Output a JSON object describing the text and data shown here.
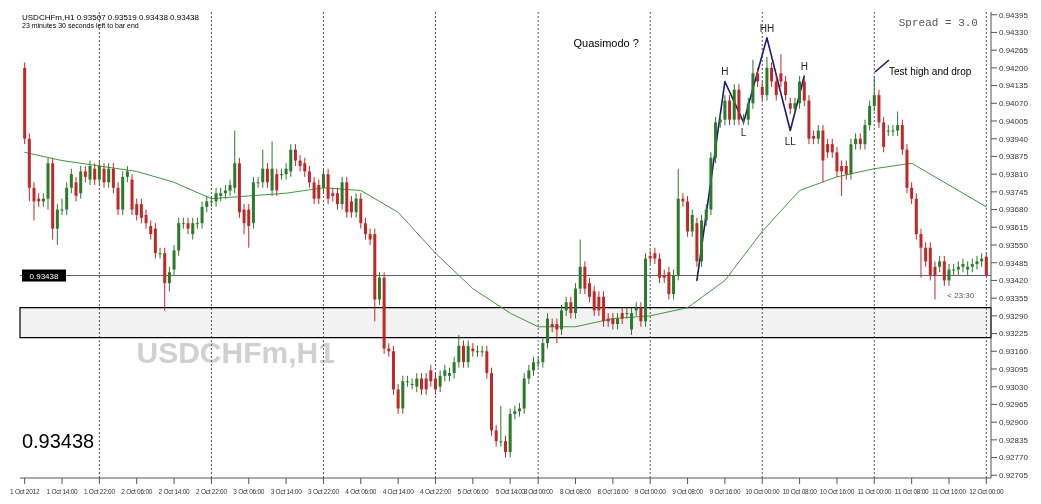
{
  "chart_data": {
    "type": "candlestick",
    "title": "USDCHFm,H1  0.93507 0.93519 0.93438 0.93438",
    "subtitle": "23 minutes 30 seconds left to bar end",
    "categories": [
      "1 Oct 2012",
      null,
      null,
      null,
      null,
      null,
      null,
      null,
      "1 Oct 14:00",
      null,
      null,
      null,
      null,
      null,
      null,
      null,
      "1 Oct 22:00",
      null,
      null,
      null,
      null,
      null,
      null,
      null,
      "2 Oct 06:00",
      null,
      null,
      null,
      null,
      null,
      null,
      null,
      "2 Oct 14:00",
      null,
      null,
      null,
      null,
      null,
      null,
      null,
      "2 Oct 22:00",
      null,
      null,
      null,
      null,
      null,
      null,
      null,
      "3 Oct 06:00",
      null,
      null,
      null,
      null,
      null,
      null,
      null,
      "3 Oct 14:00",
      null,
      null,
      null,
      null,
      null,
      null,
      null,
      "3 Oct 22:00",
      null,
      null,
      null,
      null,
      null,
      null,
      null,
      "4 Oct 06:00",
      null,
      null,
      null,
      null,
      null,
      null,
      null,
      "4 Oct 14:00",
      null,
      null,
      null,
      null,
      null,
      null,
      null,
      "4 Oct 22:00",
      null,
      null,
      null,
      null,
      null,
      null,
      null,
      "5 Oct 06:00",
      null,
      null,
      null,
      null,
      null,
      null,
      null,
      "5 Oct 14:00",
      null,
      null,
      null,
      null,
      null,
      "8 Oct 00:00",
      null,
      null,
      null,
      null,
      null,
      null,
      null,
      "8 Oct 08:00",
      null,
      null,
      null,
      null,
      null,
      null,
      null,
      "8 Oct 16:00",
      null,
      null,
      null,
      null,
      null,
      null,
      null,
      "9 Oct 00:00",
      null,
      null,
      null,
      null,
      null,
      null,
      null,
      "9 Oct 08:00",
      null,
      null,
      null,
      null,
      null,
      null,
      null,
      "9 Oct 16:00",
      null,
      null,
      null,
      null,
      null,
      null,
      null,
      "10 Oct 00:00",
      null,
      null,
      null,
      null,
      null,
      null,
      null,
      "10 Oct 08:00",
      null,
      null,
      null,
      null,
      null,
      null,
      null,
      "10 Oct 16:00",
      null,
      null,
      null,
      null,
      null,
      null,
      null,
      "11 Oct 00:00",
      null,
      null,
      null,
      null,
      null,
      null,
      null,
      "11 Oct 08:00",
      null,
      null,
      null,
      null,
      null,
      null,
      null,
      "11 Oct 16:00",
      null,
      null,
      null,
      null,
      null,
      null,
      null,
      "12 Oct 00:00"
    ],
    "ohlc": [
      [
        0.942,
        0.9422,
        0.9392,
        0.9394
      ],
      [
        0.9394,
        0.9396,
        0.9371,
        0.9376
      ],
      [
        0.9376,
        0.9378,
        0.9364,
        0.9371
      ],
      [
        0.9372,
        0.9374,
        0.9369,
        0.9371
      ],
      [
        0.9371,
        0.9374,
        0.9369,
        0.9372
      ],
      [
        0.9372,
        0.9387,
        0.9368,
        0.9385
      ],
      [
        0.9385,
        0.9387,
        0.9357,
        0.9361
      ],
      [
        0.9361,
        0.937,
        0.9355,
        0.9368
      ],
      [
        0.9368,
        0.9372,
        0.9366,
        0.9368
      ],
      [
        0.9368,
        0.9378,
        0.9366,
        0.9376
      ],
      [
        0.9376,
        0.9383,
        0.9374,
        0.9381
      ],
      [
        0.9378,
        0.938,
        0.9371,
        0.9373
      ],
      [
        0.9374,
        0.9384,
        0.9372,
        0.9382
      ],
      [
        0.9382,
        0.9384,
        0.9378,
        0.938
      ],
      [
        0.9379,
        0.9386,
        0.9377,
        0.9384
      ],
      [
        0.9383,
        0.9385,
        0.9377,
        0.9379
      ],
      [
        0.9379,
        0.9386,
        0.9377,
        0.9384
      ],
      [
        0.9383,
        0.9385,
        0.9376,
        0.9378
      ],
      [
        0.9378,
        0.9385,
        0.9376,
        0.9383
      ],
      [
        0.9383,
        0.9385,
        0.9374,
        0.9376
      ],
      [
        0.9376,
        0.9378,
        0.9366,
        0.9368
      ],
      [
        0.9368,
        0.9382,
        0.9366,
        0.938
      ],
      [
        0.938,
        0.9384,
        0.9378,
        0.9382
      ],
      [
        0.9379,
        0.9381,
        0.9366,
        0.9368
      ],
      [
        0.937,
        0.9372,
        0.9364,
        0.9366
      ],
      [
        0.937,
        0.9372,
        0.9363,
        0.9365
      ],
      [
        0.9366,
        0.9368,
        0.9361,
        0.9363
      ],
      [
        0.9362,
        0.9364,
        0.9357,
        0.9359
      ],
      [
        0.9361,
        0.9363,
        0.935,
        0.9352
      ],
      [
        0.9352,
        0.9354,
        0.935,
        0.9352
      ],
      [
        0.9352,
        0.9354,
        0.9331,
        0.9341
      ],
      [
        0.9341,
        0.9347,
        0.9338,
        0.9345
      ],
      [
        0.9346,
        0.9355,
        0.9344,
        0.9353
      ],
      [
        0.9353,
        0.9365,
        0.9351,
        0.9363
      ],
      [
        0.9363,
        0.9365,
        0.9361,
        0.9363
      ],
      [
        0.9363,
        0.9365,
        0.9359,
        0.9361
      ],
      [
        0.9359,
        0.9365,
        0.9357,
        0.9363
      ],
      [
        0.9363,
        0.9365,
        0.9361,
        0.9363
      ],
      [
        0.9363,
        0.9371,
        0.9361,
        0.9369
      ],
      [
        0.9369,
        0.9373,
        0.9367,
        0.9371
      ],
      [
        0.9371,
        0.9373,
        0.9369,
        0.9371
      ],
      [
        0.9371,
        0.9376,
        0.9369,
        0.9374
      ],
      [
        0.9373,
        0.9376,
        0.9371,
        0.9374
      ],
      [
        0.9374,
        0.9377,
        0.9372,
        0.9375
      ],
      [
        0.9375,
        0.9379,
        0.9373,
        0.9377
      ],
      [
        0.9376,
        0.9397,
        0.9374,
        0.9385
      ],
      [
        0.9385,
        0.9387,
        0.9365,
        0.9367
      ],
      [
        0.9368,
        0.937,
        0.9359,
        0.9363
      ],
      [
        0.9368,
        0.937,
        0.9354,
        0.9362
      ],
      [
        0.9363,
        0.938,
        0.9361,
        0.9378
      ],
      [
        0.9378,
        0.938,
        0.9376,
        0.9378
      ],
      [
        0.9378,
        0.939,
        0.9376,
        0.9383
      ],
      [
        0.9383,
        0.9385,
        0.9376,
        0.9378
      ],
      [
        0.9375,
        0.9393,
        0.9373,
        0.9383
      ],
      [
        0.9381,
        0.9383,
        0.9373,
        0.9375
      ],
      [
        0.9381,
        0.9383,
        0.9379,
        0.9381
      ],
      [
        0.9381,
        0.9385,
        0.9379,
        0.9383
      ],
      [
        0.9382,
        0.9392,
        0.938,
        0.939
      ],
      [
        0.939,
        0.9392,
        0.9384,
        0.9386
      ],
      [
        0.9386,
        0.9388,
        0.9382,
        0.9384
      ],
      [
        0.9385,
        0.9387,
        0.938,
        0.9382
      ],
      [
        0.9382,
        0.9384,
        0.9376,
        0.9378
      ],
      [
        0.9378,
        0.938,
        0.937,
        0.9372
      ],
      [
        0.9377,
        0.9379,
        0.937,
        0.9372
      ],
      [
        0.9376,
        0.9383,
        0.9374,
        0.9381
      ],
      [
        0.9381,
        0.9383,
        0.937,
        0.9372
      ],
      [
        0.9374,
        0.9376,
        0.9371,
        0.9373
      ],
      [
        0.9374,
        0.9376,
        0.9368,
        0.937
      ],
      [
        0.937,
        0.938,
        0.9368,
        0.9378
      ],
      [
        0.9378,
        0.938,
        0.9365,
        0.9367
      ],
      [
        0.9371,
        0.9373,
        0.9365,
        0.9367
      ],
      [
        0.9367,
        0.9374,
        0.9365,
        0.9372
      ],
      [
        0.9372,
        0.9374,
        0.9361,
        0.9363
      ],
      [
        0.9363,
        0.9365,
        0.9357,
        0.9359
      ],
      [
        0.9359,
        0.9361,
        0.9355,
        0.9357
      ],
      [
        0.9359,
        0.9361,
        0.9327,
        0.9335
      ],
      [
        0.9335,
        0.9345,
        0.9333,
        0.9343
      ],
      [
        0.9343,
        0.9345,
        0.9315,
        0.9317
      ],
      [
        0.9317,
        0.9319,
        0.9314,
        0.9316
      ],
      [
        0.9316,
        0.9318,
        0.93,
        0.9302
      ],
      [
        0.9302,
        0.9304,
        0.9293,
        0.9295
      ],
      [
        0.9295,
        0.9307,
        0.9293,
        0.9305
      ],
      [
        0.9305,
        0.9307,
        0.9303,
        0.9305
      ],
      [
        0.9304,
        0.9306,
        0.9302,
        0.9304
      ],
      [
        0.9303,
        0.9308,
        0.9301,
        0.9306
      ],
      [
        0.9306,
        0.9308,
        0.93,
        0.9302
      ],
      [
        0.9306,
        0.9308,
        0.93,
        0.9302
      ],
      [
        0.9309,
        0.9311,
        0.9303,
        0.9305
      ],
      [
        0.9306,
        0.9308,
        0.93,
        0.9302
      ],
      [
        0.9303,
        0.9309,
        0.9301,
        0.9307
      ],
      [
        0.9307,
        0.9311,
        0.9305,
        0.9309
      ],
      [
        0.9307,
        0.931,
        0.9305,
        0.9308
      ],
      [
        0.9308,
        0.9314,
        0.9306,
        0.9312
      ],
      [
        0.9312,
        0.9322,
        0.931,
        0.9318
      ],
      [
        0.9318,
        0.932,
        0.931,
        0.9312
      ],
      [
        0.9312,
        0.932,
        0.931,
        0.9318
      ],
      [
        0.9317,
        0.9319,
        0.9314,
        0.9316
      ],
      [
        0.9316,
        0.9318,
        0.9314,
        0.9316
      ],
      [
        0.9316,
        0.9318,
        0.9314,
        0.9316
      ],
      [
        0.9316,
        0.9318,
        0.9306,
        0.9308
      ],
      [
        0.9308,
        0.931,
        0.9285,
        0.9287
      ],
      [
        0.9287,
        0.9289,
        0.9281,
        0.9283
      ],
      [
        0.9283,
        0.9296,
        0.9281,
        0.9283
      ],
      [
        0.9283,
        0.9285,
        0.9277,
        0.9279
      ],
      [
        0.9279,
        0.9295,
        0.9277,
        0.9293
      ],
      [
        0.9293,
        0.9296,
        0.9291,
        0.9294
      ],
      [
        0.9294,
        0.9297,
        0.9292,
        0.9295
      ],
      [
        0.9295,
        0.9308,
        0.9293,
        0.9306
      ],
      [
        0.9306,
        0.9311,
        0.9304,
        0.9309
      ],
      [
        0.9309,
        0.9314,
        0.9307,
        0.9312
      ],
      [
        0.9312,
        0.9314,
        0.931,
        0.9312
      ],
      [
        0.9312,
        0.9321,
        0.931,
        0.9319
      ],
      [
        0.9319,
        0.933,
        0.9317,
        0.9328
      ],
      [
        0.9326,
        0.9328,
        0.9323,
        0.9325
      ],
      [
        0.9326,
        0.9328,
        0.9319,
        0.9324
      ],
      [
        0.9324,
        0.9333,
        0.9322,
        0.9331
      ],
      [
        0.9331,
        0.9336,
        0.9329,
        0.9334
      ],
      [
        0.9334,
        0.9336,
        0.9328,
        0.933
      ],
      [
        0.933,
        0.9341,
        0.9328,
        0.9339
      ],
      [
        0.9339,
        0.9357,
        0.9337,
        0.9347
      ],
      [
        0.9347,
        0.9349,
        0.9337,
        0.9339
      ],
      [
        0.9341,
        0.9343,
        0.9334,
        0.9336
      ],
      [
        0.9338,
        0.934,
        0.9329,
        0.9331
      ],
      [
        0.9336,
        0.9338,
        0.9329,
        0.9331
      ],
      [
        0.9336,
        0.9338,
        0.9325,
        0.9327
      ],
      [
        0.9328,
        0.933,
        0.9325,
        0.9327
      ],
      [
        0.9328,
        0.933,
        0.9324,
        0.9326
      ],
      [
        0.9326,
        0.933,
        0.9324,
        0.9328
      ],
      [
        0.933,
        0.9332,
        0.9326,
        0.9328
      ],
      [
        0.933,
        0.9332,
        0.9328,
        0.933
      ],
      [
        0.9324,
        0.9332,
        0.9322,
        0.933
      ],
      [
        0.9331,
        0.9334,
        0.9329,
        0.9332
      ],
      [
        0.9332,
        0.9334,
        0.9325,
        0.9327
      ],
      [
        0.9327,
        0.9352,
        0.9325,
        0.935
      ],
      [
        0.9351,
        0.9353,
        0.9348,
        0.935
      ],
      [
        0.9352,
        0.9354,
        0.9348,
        0.935
      ],
      [
        0.935,
        0.9352,
        0.9341,
        0.9343
      ],
      [
        0.9344,
        0.9346,
        0.9341,
        0.9343
      ],
      [
        0.9345,
        0.9347,
        0.9335,
        0.9337
      ],
      [
        0.9337,
        0.9346,
        0.9335,
        0.9344
      ],
      [
        0.9344,
        0.9383,
        0.9342,
        0.9372
      ],
      [
        0.9372,
        0.9374,
        0.9369,
        0.9371
      ],
      [
        0.9371,
        0.9373,
        0.9358,
        0.936
      ],
      [
        0.936,
        0.9368,
        0.9358,
        0.9366
      ],
      [
        0.9363,
        0.9365,
        0.9347,
        0.9349
      ],
      [
        0.9349,
        0.9366,
        0.9347,
        0.9364
      ],
      [
        0.9364,
        0.937,
        0.9362,
        0.9368
      ],
      [
        0.9368,
        0.9389,
        0.9366,
        0.9387
      ],
      [
        0.9387,
        0.9402,
        0.9385,
        0.94
      ],
      [
        0.94,
        0.9403,
        0.9398,
        0.9401
      ],
      [
        0.9401,
        0.941,
        0.9399,
        0.9408
      ],
      [
        0.9408,
        0.941,
        0.9399,
        0.9401
      ],
      [
        0.9401,
        0.9414,
        0.9399,
        0.9412
      ],
      [
        0.9412,
        0.9414,
        0.9399,
        0.9401
      ],
      [
        0.9401,
        0.9403,
        0.9399,
        0.9401
      ],
      [
        0.9401,
        0.9409,
        0.9399,
        0.9407
      ],
      [
        0.9407,
        0.9423,
        0.9405,
        0.9418
      ],
      [
        0.9418,
        0.942,
        0.9413,
        0.9415
      ],
      [
        0.9413,
        0.9415,
        0.9408,
        0.941
      ],
      [
        0.941,
        0.9424,
        0.9408,
        0.942
      ],
      [
        0.942,
        0.9422,
        0.9413,
        0.9415
      ],
      [
        0.9415,
        0.9417,
        0.9408,
        0.941
      ],
      [
        0.9418,
        0.9425,
        0.9413,
        0.9415
      ],
      [
        0.9415,
        0.9417,
        0.9408,
        0.941
      ],
      [
        0.9407,
        0.9409,
        0.9403,
        0.9405
      ],
      [
        0.9405,
        0.9409,
        0.9403,
        0.9407
      ],
      [
        0.9407,
        0.9417,
        0.9405,
        0.9415
      ],
      [
        0.9415,
        0.9417,
        0.9406,
        0.9408
      ],
      [
        0.9408,
        0.941,
        0.9392,
        0.9394
      ],
      [
        0.9395,
        0.9397,
        0.9392,
        0.9394
      ],
      [
        0.9394,
        0.9399,
        0.9392,
        0.9397
      ],
      [
        0.9397,
        0.9399,
        0.9378,
        0.9386
      ],
      [
        0.9392,
        0.9394,
        0.9387,
        0.9389
      ],
      [
        0.9392,
        0.9394,
        0.9387,
        0.9389
      ],
      [
        0.9389,
        0.9391,
        0.938,
        0.9382
      ],
      [
        0.9384,
        0.9386,
        0.9373,
        0.9382
      ],
      [
        0.9384,
        0.9386,
        0.9379,
        0.9381
      ],
      [
        0.9381,
        0.9394,
        0.9379,
        0.9392
      ],
      [
        0.9392,
        0.9396,
        0.939,
        0.9394
      ],
      [
        0.9394,
        0.9396,
        0.939,
        0.9392
      ],
      [
        0.9392,
        0.9401,
        0.939,
        0.9399
      ],
      [
        0.9399,
        0.9408,
        0.9397,
        0.9406
      ],
      [
        0.9406,
        0.9417,
        0.9404,
        0.941
      ],
      [
        0.941,
        0.9412,
        0.9398,
        0.94
      ],
      [
        0.94,
        0.9402,
        0.9389,
        0.9391
      ],
      [
        0.9397,
        0.9399,
        0.9395,
        0.9397
      ],
      [
        0.9397,
        0.9399,
        0.9395,
        0.9397
      ],
      [
        0.9397,
        0.9404,
        0.9395,
        0.9399
      ],
      [
        0.9399,
        0.9401,
        0.9388,
        0.939
      ],
      [
        0.939,
        0.9392,
        0.9374,
        0.9376
      ],
      [
        0.9376,
        0.9378,
        0.937,
        0.9372
      ],
      [
        0.9372,
        0.9374,
        0.9357,
        0.9359
      ],
      [
        0.9359,
        0.9361,
        0.9343,
        0.9354
      ],
      [
        0.9354,
        0.9356,
        0.9347,
        0.9349
      ],
      [
        0.9354,
        0.9356,
        0.9342,
        0.9344
      ],
      [
        0.9347,
        0.9349,
        0.9335,
        0.9344
      ],
      [
        0.9347,
        0.9351,
        0.9345,
        0.9349
      ],
      [
        0.9349,
        0.9351,
        0.934,
        0.9342
      ],
      [
        0.9342,
        0.9348,
        0.934,
        0.9346
      ],
      [
        0.9346,
        0.9348,
        0.9344,
        0.9346
      ],
      [
        0.9346,
        0.9349,
        0.9344,
        0.9347
      ],
      [
        0.9347,
        0.935,
        0.9345,
        0.9348
      ],
      [
        0.9346,
        0.9349,
        0.9344,
        0.9347
      ],
      [
        0.9347,
        0.935,
        0.9345,
        0.9348
      ],
      [
        0.9348,
        0.9351,
        0.9346,
        0.9349
      ],
      [
        0.9349,
        0.9352,
        0.9347,
        0.935
      ],
      [
        0.93507,
        0.93519,
        0.93438,
        0.93438
      ]
    ],
    "colors": [
      "#c02828",
      "#c02828",
      "#c02828",
      "#c02828",
      "#2a7a2a",
      "#2a7a2a",
      "#c02828",
      "#2a7a2a",
      "#2a7a2a",
      "#2a7a2a",
      "#2a7a2a",
      "#c02828",
      "#2a7a2a",
      "#c02828",
      "#2a7a2a",
      "#c02828",
      "#2a7a2a",
      "#c02828",
      "#2a7a2a",
      "#c02828",
      "#c02828",
      "#2a7a2a",
      "#2a7a2a",
      "#c02828",
      "#c02828",
      "#c02828",
      "#c02828",
      "#c02828",
      "#c02828",
      "#2a7a2a",
      "#c02828",
      "#2a7a2a",
      "#2a7a2a",
      "#2a7a2a",
      "#2a7a2a",
      "#c02828",
      "#2a7a2a",
      "#2a7a2a",
      "#2a7a2a",
      "#2a7a2a",
      "#2a7a2a",
      "#2a7a2a",
      "#2a7a2a",
      "#2a7a2a",
      "#2a7a2a",
      "#2a7a2a",
      "#c02828",
      "#c02828",
      "#c02828",
      "#2a7a2a",
      "#2a7a2a",
      "#2a7a2a",
      "#c02828",
      "#2a7a2a",
      "#c02828",
      "#2a7a2a",
      "#2a7a2a",
      "#2a7a2a",
      "#c02828",
      "#c02828",
      "#c02828",
      "#c02828",
      "#c02828",
      "#c02828",
      "#2a7a2a",
      "#c02828",
      "#c02828",
      "#c02828",
      "#2a7a2a",
      "#c02828",
      "#c02828",
      "#2a7a2a",
      "#c02828",
      "#c02828",
      "#c02828",
      "#c02828",
      "#2a7a2a",
      "#c02828",
      "#c02828",
      "#c02828",
      "#c02828",
      "#2a7a2a",
      "#2a7a2a",
      "#2a7a2a",
      "#2a7a2a",
      "#c02828",
      "#c02828",
      "#c02828",
      "#c02828",
      "#2a7a2a",
      "#2a7a2a",
      "#2a7a2a",
      "#2a7a2a",
      "#2a7a2a",
      "#c02828",
      "#2a7a2a",
      "#c02828",
      "#2a7a2a",
      "#2a7a2a",
      "#c02828",
      "#c02828",
      "#c02828",
      "#2a7a2a",
      "#c02828",
      "#2a7a2a",
      "#2a7a2a",
      "#2a7a2a",
      "#2a7a2a",
      "#2a7a2a",
      "#2a7a2a",
      "#2a7a2a",
      "#2a7a2a",
      "#2a7a2a",
      "#c02828",
      "#c02828",
      "#2a7a2a",
      "#2a7a2a",
      "#c02828",
      "#2a7a2a",
      "#2a7a2a",
      "#c02828",
      "#c02828",
      "#c02828",
      "#c02828",
      "#c02828",
      "#c02828",
      "#c02828",
      "#2a7a2a",
      "#c02828",
      "#2a7a2a",
      "#2a7a2a",
      "#2a7a2a",
      "#c02828",
      "#2a7a2a",
      "#c02828",
      "#c02828",
      "#c02828",
      "#c02828",
      "#c02828",
      "#2a7a2a",
      "#2a7a2a",
      "#c02828",
      "#c02828",
      "#2a7a2a",
      "#c02828",
      "#2a7a2a",
      "#2a7a2a",
      "#2a7a2a",
      "#2a7a2a",
      "#2a7a2a",
      "#2a7a2a",
      "#c02828",
      "#2a7a2a",
      "#c02828",
      "#2a7a2a",
      "#2a7a2a",
      "#2a7a2a",
      "#c02828",
      "#c02828",
      "#2a7a2a",
      "#c02828",
      "#c02828",
      "#c02828",
      "#c02828",
      "#c02828",
      "#2a7a2a",
      "#2a7a2a",
      "#c02828",
      "#c02828",
      "#c02828",
      "#2a7a2a",
      "#c02828",
      "#c02828",
      "#c02828",
      "#c02828",
      "#c02828",
      "#c02828",
      "#2a7a2a",
      "#2a7a2a",
      "#c02828",
      "#2a7a2a",
      "#2a7a2a",
      "#2a7a2a",
      "#c02828",
      "#c02828",
      "#2a7a2a",
      "#2a7a2a",
      "#2a7a2a",
      "#c02828",
      "#c02828",
      "#c02828",
      "#c02828",
      "#c02828",
      "#c02828",
      "#c02828",
      "#c02828",
      "#2a7a2a",
      "#c02828",
      "#2a7a2a",
      "#2a7a2a",
      "#2a7a2a",
      "#2a7a2a",
      "#2a7a2a",
      "#2a7a2a",
      "#2a7a2a",
      "#2a7a2a",
      "#c02828"
    ],
    "series": [
      {
        "type": "line",
        "color": "#3c9a3c",
        "x": [
          "1 Oct 2012",
          "1 Oct 14:00",
          "1 Oct 22:00",
          "2 Oct 06:00",
          "2 Oct 14:00",
          "2 Oct 22:00",
          "3 Oct 06:00",
          "3 Oct 14:00",
          "3 Oct 22:00",
          "4 Oct 06:00",
          "4 Oct 14:00",
          "4 Oct 22:00",
          "5 Oct 06:00",
          "5 Oct 14:00",
          "8 Oct 00:00",
          "8 Oct 08:00",
          "8 Oct 16:00",
          "9 Oct 00:00",
          "9 Oct 08:00",
          "9 Oct 16:00",
          "10 Oct 00:00",
          "10 Oct 08:00",
          "10 Oct 16:00",
          "11 Oct 00:00",
          "11 Oct 08:00",
          "11 Oct 16:00",
          "12 Oct 00:00"
        ],
        "values": [
          0.9389,
          0.9386,
          0.9384,
          0.9382,
          0.9378,
          0.9372,
          0.9373,
          0.9374,
          0.9376,
          0.9375,
          0.9367,
          0.9352,
          0.9339,
          0.933,
          0.9325,
          0.9325,
          0.9328,
          0.9329,
          0.9332,
          0.9342,
          0.936,
          0.9375,
          0.938,
          0.9383,
          0.9385,
          0.9377,
          0.9369
        ]
      },
      {
        "type": "line",
        "color": "#1a1a6e",
        "values": [
          null,
          null,
          null,
          null,
          null,
          null,
          null,
          null,
          null,
          null,
          null,
          null,
          null,
          null,
          null,
          null,
          null,
          null,
          null,
          null,
          null,
          null,
          null,
          null,
          null,
          null,
          null,
          null,
          null,
          null,
          null,
          null,
          null,
          null,
          null,
          null,
          null,
          null,
          null,
          null,
          null,
          null,
          null,
          null,
          null,
          null,
          null,
          null,
          null,
          null,
          null,
          null,
          null,
          null,
          null,
          null,
          null,
          null,
          null,
          null,
          null,
          null,
          null,
          null,
          null,
          null,
          null,
          null,
          null,
          null,
          null,
          null,
          null,
          null,
          null,
          null,
          null,
          null,
          null,
          null,
          null,
          null,
          null,
          null,
          null,
          null,
          null,
          null,
          null,
          null,
          null,
          null,
          null,
          null,
          null,
          null,
          null,
          null,
          null,
          null,
          null,
          null,
          null,
          null,
          null,
          null,
          null,
          null,
          null,
          null,
          null,
          null,
          null,
          null,
          null,
          null,
          null,
          null,
          null,
          null,
          null,
          null,
          null,
          null,
          null,
          null,
          null,
          null,
          null,
          null,
          null,
          null,
          null,
          null,
          null,
          null,
          null,
          null,
          null,
          null,
          null,
          null,
          null,
          null,
          0.9342,
          null,
          null,
          null,
          null,
          null,
          0.9415,
          null,
          null,
          null,
          0.94,
          null,
          null,
          null,
          null,
          0.9431,
          null,
          null,
          null,
          null,
          0.9397,
          null,
          null,
          0.9417,
          null,
          null,
          null,
          null,
          null,
          null,
          null,
          null,
          null,
          null,
          null,
          null,
          null,
          null,
          null,
          null,
          null,
          null,
          null,
          null,
          null,
          null,
          null,
          null,
          null,
          null,
          null,
          null,
          null,
          null,
          null,
          null,
          null,
          null,
          null,
          null,
          null,
          null,
          null
        ],
        "value_labels": [
          null,
          null,
          null,
          null,
          null,
          null,
          null,
          null,
          null,
          null,
          null,
          null,
          null,
          null,
          null,
          null,
          null,
          null,
          null,
          null,
          null,
          null,
          null,
          null,
          null,
          null,
          null,
          null,
          null,
          null,
          null,
          null,
          null,
          null,
          null,
          null,
          null,
          null,
          null,
          null,
          null,
          null,
          null,
          null,
          null,
          null,
          null,
          null,
          null,
          null,
          null,
          null,
          null,
          null,
          null,
          null,
          null,
          null,
          null,
          null,
          null,
          null,
          null,
          null,
          null,
          null,
          null,
          null,
          null,
          null,
          null,
          null,
          null,
          null,
          null,
          null,
          null,
          null,
          null,
          null,
          null,
          null,
          null,
          null,
          null,
          null,
          null,
          null,
          null,
          null,
          null,
          null,
          null,
          null,
          null,
          null,
          null,
          null,
          null,
          null,
          null,
          null,
          null,
          null,
          null,
          null,
          null,
          null,
          null,
          null,
          null,
          null,
          null,
          null,
          null,
          null,
          null,
          null,
          null,
          null,
          null,
          null,
          null,
          null,
          null,
          null,
          null,
          null,
          null,
          null,
          null,
          null,
          null,
          null,
          null,
          null,
          null,
          null,
          null,
          null,
          null,
          null,
          null,
          null,
          null,
          null,
          null,
          null,
          null,
          null,
          "H",
          null,
          null,
          null,
          "L",
          null,
          null,
          null,
          null,
          "HH",
          null,
          null,
          null,
          null,
          "LL",
          null,
          null,
          "H",
          null,
          null,
          null,
          null,
          null,
          null,
          null,
          null,
          null,
          null,
          null,
          null,
          null,
          null,
          null,
          null,
          null,
          null,
          null,
          null,
          null,
          null,
          null,
          null,
          null,
          null,
          null,
          null,
          null,
          null,
          null,
          null,
          null,
          null,
          null,
          null,
          null,
          null,
          null
        ]
      }
    ],
    "ylim": [
      0.92695,
      0.94405
    ],
    "yticks": [
      0.92705,
      {
        "value": 0.9277,
        "label": "0.92770"
      },
      0.92835,
      {
        "value": 0.929,
        "label": "0.92900"
      },
      0.92965,
      {
        "value": 0.9303,
        "label": "0.93030"
      },
      0.93095,
      {
        "value": 0.9316,
        "label": "0.93160"
      },
      0.93225,
      {
        "value": 0.9329,
        "label": "0.93290"
      },
      0.93355,
      {
        "value": 0.9342,
        "label": "0.93420"
      },
      0.93485,
      {
        "value": 0.9355,
        "label": "0.93550"
      },
      0.93615,
      {
        "value": 0.9368,
        "label": "0.93680"
      },
      0.93745,
      {
        "value": 0.9381,
        "label": "0.93810"
      },
      0.93875,
      {
        "value": 0.9394,
        "label": "0.93940"
      },
      0.94005,
      {
        "value": 0.9407,
        "label": "0.94070"
      },
      0.94135,
      {
        "value": 0.942,
        "label": "0.94200"
      },
      0.94265,
      {
        "value": 0.9433,
        "label": "0.94330"
      },
      0.94395
    ],
    "grid": "x",
    "ref_lines": [
      {
        "axis": "y",
        "value": 0.93438,
        "label": "0.93438",
        "color": "#606060"
      }
    ],
    "bands": [
      {
        "axis": "y",
        "from": 0.9321,
        "to": 0.9332,
        "color": "#000000"
      }
    ],
    "annotations": [
      "Quasimodo ?",
      "Test high and drop",
      "Spread = 3.0",
      "USDCHFm,H1",
      "0.93438",
      "< 23:30"
    ]
  }
}
